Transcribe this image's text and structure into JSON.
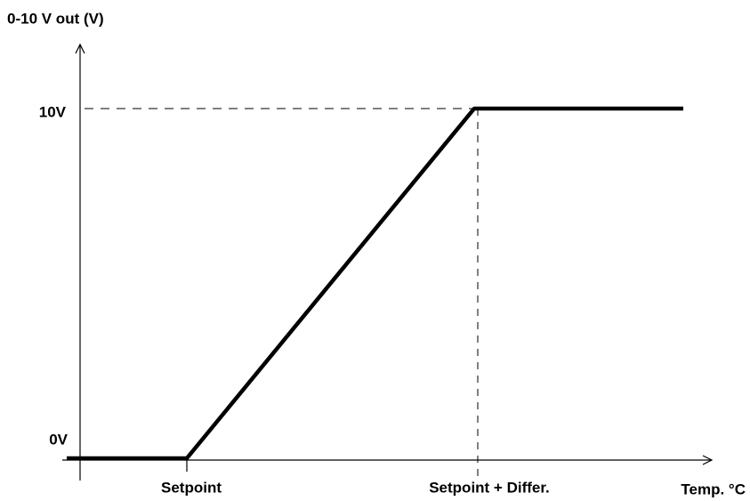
{
  "y_axis": {
    "label": "0-10 V out (V)",
    "ticks": [
      "10V",
      "0V"
    ]
  },
  "x_axis": {
    "label": "Temp. °C",
    "ticks": [
      "Setpoint",
      "Setpoint + Differ."
    ]
  }
}
